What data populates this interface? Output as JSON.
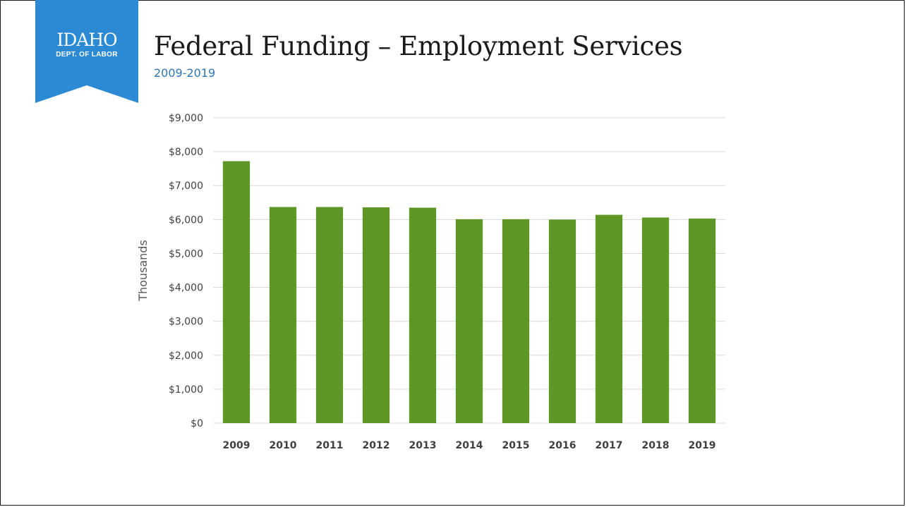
{
  "logo": {
    "name_text": "IDAHO",
    "dept_text": "DEPT. OF LABOR",
    "banner_color": "#2c8ad4"
  },
  "header": {
    "title": "Federal Funding – Employment Services",
    "subtitle": "2009-2019"
  },
  "chart_data": {
    "type": "bar",
    "title": "",
    "xlabel": "",
    "ylabel": "Thousands",
    "categories": [
      "2009",
      "2010",
      "2011",
      "2012",
      "2013",
      "2014",
      "2015",
      "2016",
      "2017",
      "2018",
      "2019"
    ],
    "values": [
      7720,
      6370,
      6370,
      6360,
      6350,
      6010,
      6010,
      6000,
      6140,
      6060,
      6030
    ],
    "ylim": [
      0,
      9000
    ],
    "ytick_values": [
      0,
      1000,
      2000,
      3000,
      4000,
      5000,
      6000,
      7000,
      8000,
      9000
    ],
    "ytick_labels": [
      "$0",
      "$1,000",
      "$2,000",
      "$3,000",
      "$4,000",
      "$5,000",
      "$6,000",
      "$7,000",
      "$8,000",
      "$9,000"
    ],
    "bar_color": "#5f9727",
    "grid_color": "#d9d9d9",
    "grid": true,
    "legend": "none"
  }
}
